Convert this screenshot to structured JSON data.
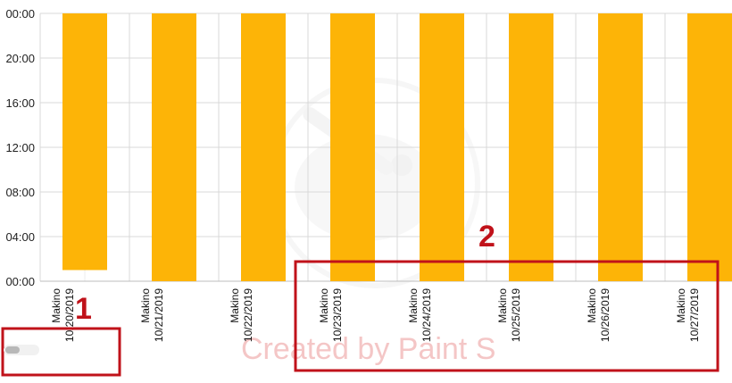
{
  "chart_data": {
    "type": "bar",
    "categories": [
      [
        "Makino",
        "10/20/2019"
      ],
      [
        "Makino",
        "10/21/2019"
      ],
      [
        "Makino",
        "10/22/2019"
      ],
      [
        "Makino",
        "10/23/2019"
      ],
      [
        "Makino",
        "10/24/2019"
      ],
      [
        "Makino",
        "10/25/2019"
      ],
      [
        "Makino",
        "10/26/2019"
      ],
      [
        "Makino",
        "10/27/2019"
      ]
    ],
    "series": [
      {
        "color": "#fdb407",
        "low": [
          1,
          0,
          0,
          0,
          0,
          0,
          0,
          0
        ],
        "high": [
          24,
          24,
          24,
          24,
          24,
          24,
          24,
          24
        ]
      }
    ],
    "y_ticks": [
      {
        "value": 0,
        "label": "00:00"
      },
      {
        "value": 4,
        "label": "04:00"
      },
      {
        "value": 8,
        "label": "08:00"
      },
      {
        "value": 12,
        "label": "12:00"
      },
      {
        "value": 16,
        "label": "16:00"
      },
      {
        "value": 20,
        "label": "20:00"
      },
      {
        "value": 24,
        "label": "00:00"
      }
    ],
    "ylim": [
      0,
      24
    ],
    "grid": true,
    "title": "",
    "xlabel": "",
    "ylabel": ""
  },
  "annotations": {
    "callout_1": {
      "label": "1",
      "color": "#c0121a"
    },
    "callout_2": {
      "label": "2",
      "color": "#c0121a"
    }
  },
  "watermark": {
    "text": "Created by Paint S"
  }
}
